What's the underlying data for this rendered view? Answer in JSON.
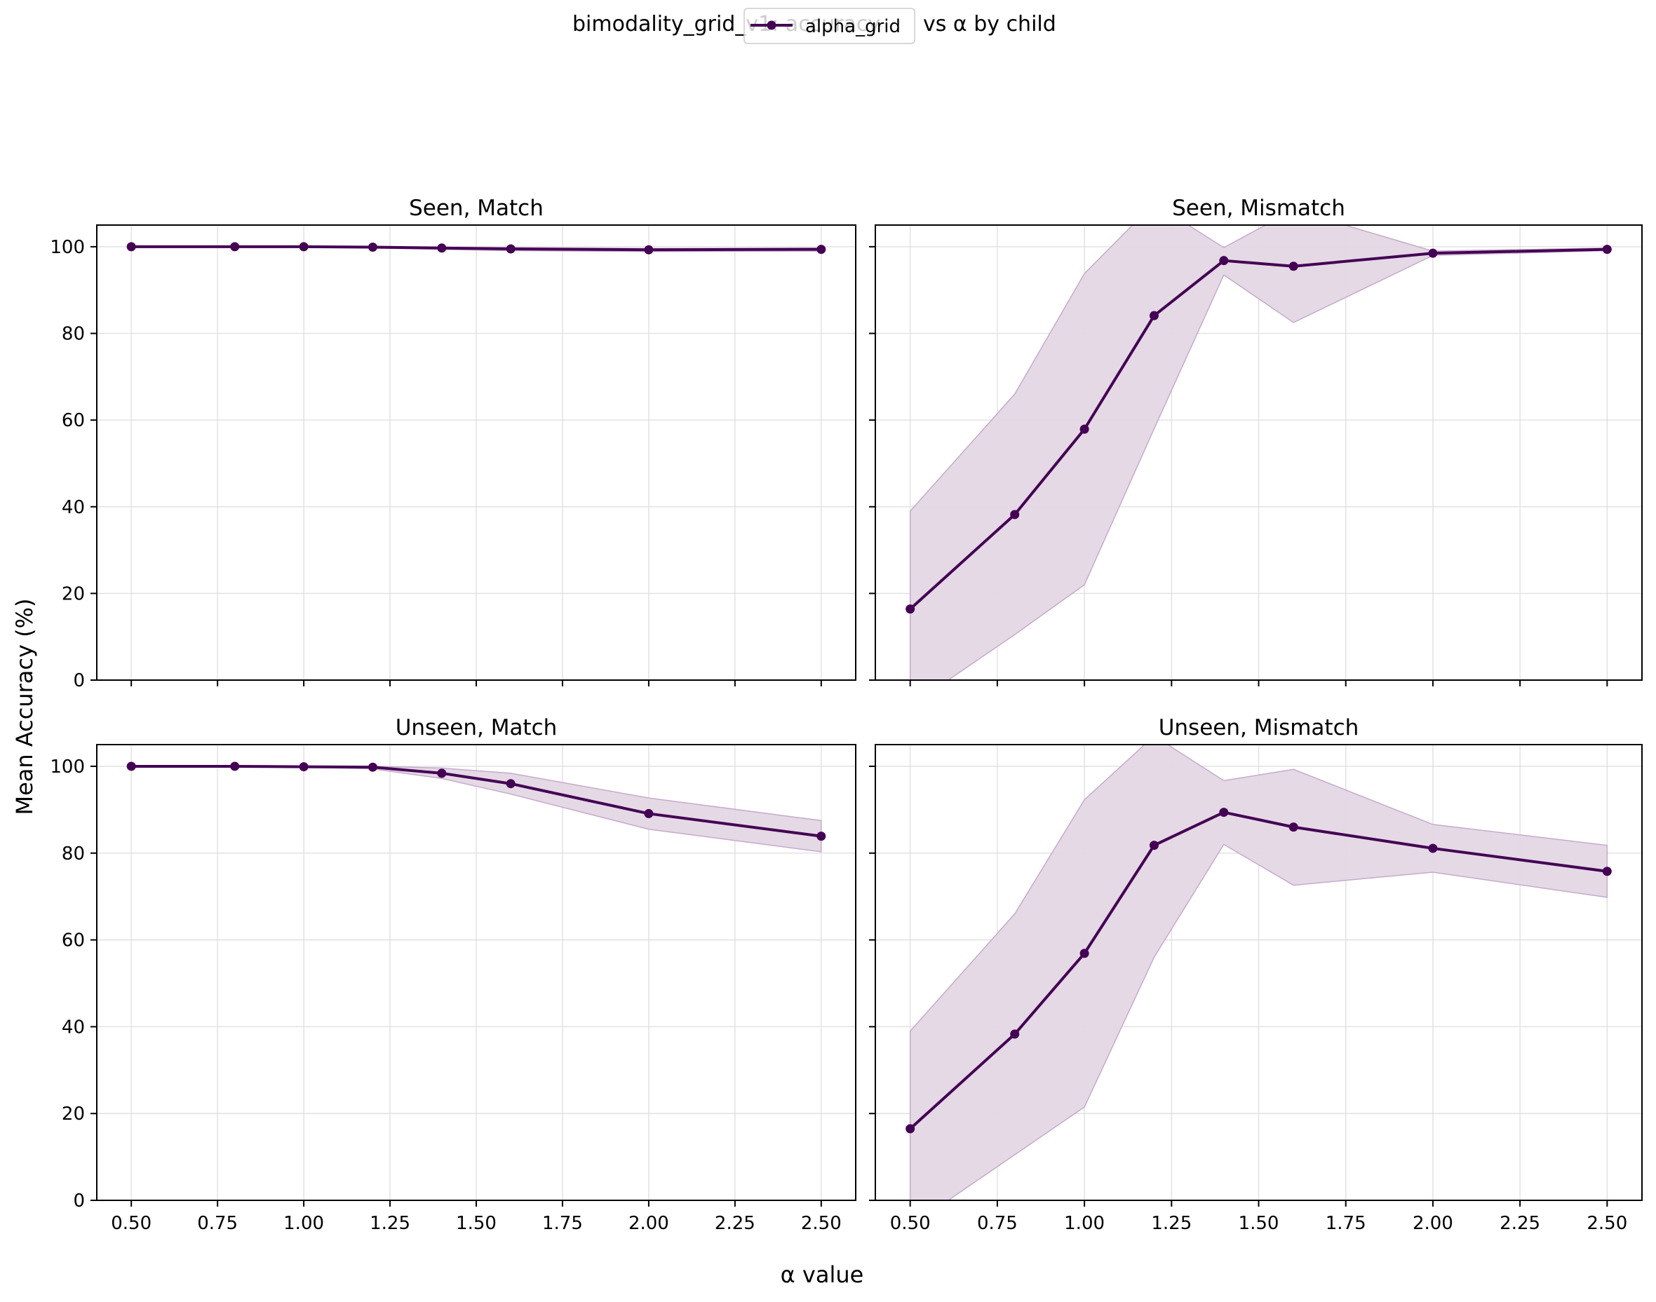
{
  "figure": {
    "title_left": "bimodality_grid_v1: accuracy",
    "title_right": "vs α by child",
    "xlabel": "α value",
    "ylabel": "Mean Accuracy (%)",
    "legend": {
      "label": "alpha_grid",
      "placement": "top-center"
    }
  },
  "style": {
    "line_color": "#440154",
    "band_fill": "#e3d7e4",
    "band_edge": "#c6aacb",
    "grid_color": "#dedede"
  },
  "chart_data": [
    {
      "type": "line",
      "title": "Seen, Match",
      "x": [
        0.5,
        0.8,
        1.0,
        1.2,
        1.4,
        1.6,
        2.0,
        2.5
      ],
      "series": [
        {
          "name": "alpha_grid",
          "values": [
            100,
            100,
            100,
            99.9,
            99.7,
            99.5,
            99.3,
            99.4
          ],
          "band_low": [
            99.9,
            99.9,
            99.9,
            99.7,
            99.4,
            99.1,
            98.9,
            99.0
          ],
          "band_high": [
            100,
            100,
            100,
            100,
            99.9,
            99.8,
            99.6,
            99.7
          ]
        }
      ],
      "xlim": [
        0.4,
        2.6
      ],
      "ylim": [
        0,
        105
      ],
      "xticks": [
        "0.50",
        "0.75",
        "1.00",
        "1.25",
        "1.50",
        "1.75",
        "2.00",
        "2.25",
        "2.50"
      ],
      "yticks": [
        "0",
        "20",
        "40",
        "60",
        "80",
        "100"
      ],
      "grid": true
    },
    {
      "type": "line",
      "title": "Seen, Mismatch",
      "x": [
        0.5,
        0.8,
        1.0,
        1.2,
        1.4,
        1.6,
        2.0,
        2.5
      ],
      "series": [
        {
          "name": "alpha_grid",
          "values": [
            16.4,
            38.2,
            57.9,
            84.1,
            96.8,
            95.5,
            98.5,
            99.4
          ],
          "band_low": [
            -6,
            10.5,
            22,
            58,
            93.5,
            82.5,
            98,
            99.1
          ],
          "band_high": [
            39,
            66,
            93.8,
            110,
            99.8,
            108.5,
            99,
            99.7
          ]
        }
      ],
      "xlim": [
        0.4,
        2.6
      ],
      "ylim": [
        0,
        105
      ],
      "xticks": [
        "0.50",
        "0.75",
        "1.00",
        "1.25",
        "1.50",
        "1.75",
        "2.00",
        "2.25",
        "2.50"
      ],
      "yticks": [
        "0",
        "20",
        "40",
        "60",
        "80",
        "100"
      ],
      "grid": true
    },
    {
      "type": "line",
      "title": "Unseen, Match",
      "x": [
        0.5,
        0.8,
        1.0,
        1.2,
        1.4,
        1.6,
        2.0,
        2.5
      ],
      "series": [
        {
          "name": "alpha_grid",
          "values": [
            100,
            100,
            99.9,
            99.8,
            98.4,
            96.0,
            89.1,
            83.9
          ],
          "band_low": [
            99.9,
            99.9,
            99.8,
            99.4,
            97.2,
            93.6,
            85.5,
            80.3
          ],
          "band_high": [
            100,
            100,
            100,
            100,
            99.6,
            98.4,
            92.7,
            87.5
          ]
        }
      ],
      "xlim": [
        0.4,
        2.6
      ],
      "ylim": [
        0,
        105
      ],
      "xticks": [
        "0.50",
        "0.75",
        "1.00",
        "1.25",
        "1.50",
        "1.75",
        "2.00",
        "2.25",
        "2.50"
      ],
      "yticks": [
        "0",
        "20",
        "40",
        "60",
        "80",
        "100"
      ],
      "grid": true
    },
    {
      "type": "line",
      "title": "Unseen, Mismatch",
      "x": [
        0.5,
        0.8,
        1.0,
        1.2,
        1.4,
        1.6,
        2.0,
        2.5
      ],
      "series": [
        {
          "name": "alpha_grid",
          "values": [
            16.5,
            38.3,
            56.9,
            81.8,
            89.4,
            86.0,
            81.1,
            75.8
          ],
          "band_low": [
            -6,
            10.5,
            21.5,
            56,
            82,
            72.6,
            75.6,
            69.8
          ],
          "band_high": [
            39,
            66,
            92.3,
            107,
            96.7,
            99.3,
            86.6,
            81.8
          ]
        }
      ],
      "xlim": [
        0.4,
        2.6
      ],
      "ylim": [
        0,
        105
      ],
      "xticks": [
        "0.50",
        "0.75",
        "1.00",
        "1.25",
        "1.50",
        "1.75",
        "2.00",
        "2.25",
        "2.50"
      ],
      "yticks": [
        "0",
        "20",
        "40",
        "60",
        "80",
        "100"
      ],
      "grid": true
    }
  ]
}
